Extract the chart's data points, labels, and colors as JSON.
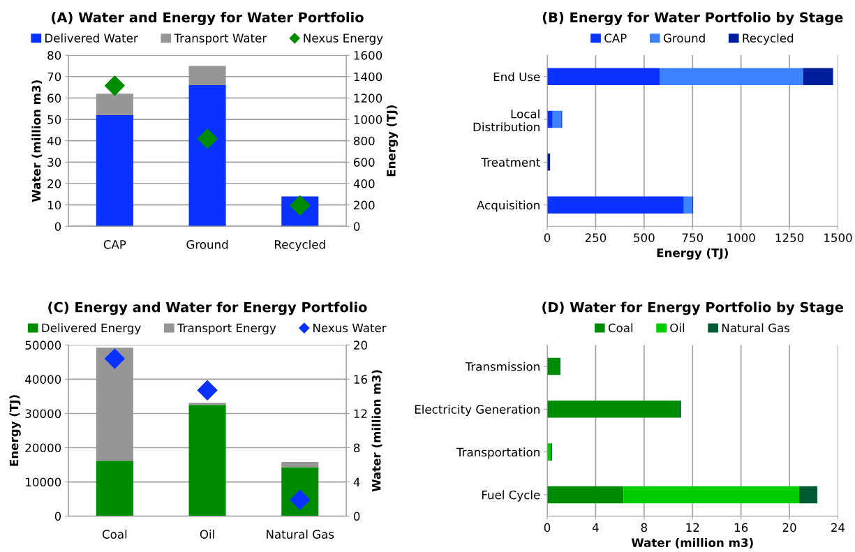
{
  "chart_data": [
    {
      "type": "bar",
      "title": "(A) Water and Energy for Water Portfolio",
      "ylabel": "Water (million m3)",
      "y2label": "Energy (TJ)",
      "categories": [
        "CAP",
        "Ground",
        "Recycled"
      ],
      "stacked": true,
      "grid": "y",
      "legend": "top",
      "ylim": [
        0,
        80
      ],
      "yticks": [
        0,
        10,
        20,
        30,
        40,
        50,
        60,
        70,
        80
      ],
      "y2lim": [
        0,
        1600
      ],
      "y2ticks": [
        0,
        200,
        400,
        600,
        800,
        1000,
        1200,
        1400,
        1600
      ],
      "series": [
        {
          "name": "Delivered Water",
          "color": "#0a32ff",
          "values": [
            52,
            66,
            14
          ]
        },
        {
          "name": "Transport Water",
          "color": "#969696",
          "values": [
            10,
            9,
            0
          ]
        },
        {
          "name": "Nexus Energy",
          "type": "scatter",
          "axis": "y2",
          "marker": "diamond",
          "color": "#008c00",
          "values": [
            1315,
            820,
            195
          ]
        }
      ]
    },
    {
      "type": "bar",
      "title": "(B) Energy for Water Portfolio by Stage",
      "xlabel": "Energy (TJ)",
      "orientation": "horizontal",
      "stacked": true,
      "grid": "x",
      "legend": "top",
      "categories": [
        "End Use",
        "Local\nDistribution",
        "Treatment",
        "Acquisition"
      ],
      "xlim": [
        0,
        1500
      ],
      "xticks": [
        0,
        250,
        500,
        750,
        1000,
        1250,
        1500
      ],
      "series": [
        {
          "name": "CAP",
          "color": "#0a32ff",
          "values": [
            580,
            28,
            0,
            705
          ]
        },
        {
          "name": "Ground",
          "color": "#3c82ff",
          "values": [
            740,
            45,
            0,
            45
          ]
        },
        {
          "name": "Recycled",
          "color": "#001e9b",
          "values": [
            155,
            4,
            15,
            3
          ]
        }
      ]
    },
    {
      "type": "bar",
      "title": "(C) Energy and Water for Energy Portfolio",
      "ylabel": "Energy (TJ)",
      "y2label": "Water (million m3)",
      "categories": [
        "Coal",
        "Oil",
        "Natural Gas"
      ],
      "stacked": true,
      "grid": "y",
      "legend": "top",
      "ylim": [
        0,
        50000
      ],
      "yticks": [
        0,
        10000,
        20000,
        30000,
        40000,
        50000
      ],
      "y2lim": [
        0,
        20
      ],
      "y2ticks": [
        0,
        4,
        8,
        12,
        16,
        20
      ],
      "series": [
        {
          "name": "Delivered Energy",
          "color": "#008c00",
          "values": [
            16200,
            32500,
            14300
          ]
        },
        {
          "name": "Transport Energy",
          "color": "#969696",
          "values": [
            33000,
            600,
            1500
          ]
        },
        {
          "name": "Nexus Water",
          "type": "scatter",
          "axis": "y2",
          "marker": "diamond",
          "color": "#0a32ff",
          "values": [
            18.4,
            14.7,
            1.9
          ]
        }
      ]
    },
    {
      "type": "bar",
      "title": "(D) Water for Energy Portfolio by Stage",
      "xlabel": "Water (million m3)",
      "orientation": "horizontal",
      "stacked": true,
      "grid": "x",
      "legend": "top",
      "categories": [
        "Transmission",
        "Electricity Generation",
        "Transportation",
        "Fuel Cycle"
      ],
      "xlim": [
        0,
        24
      ],
      "xticks": [
        0,
        4,
        8,
        12,
        16,
        20,
        24
      ],
      "series": [
        {
          "name": "Coal",
          "color": "#008c00",
          "values": [
            1.05,
            10.95,
            0,
            6.3
          ]
        },
        {
          "name": "Oil",
          "color": "#00cd00",
          "values": [
            0,
            0,
            0.3,
            14.5
          ]
        },
        {
          "name": "Natural Gas",
          "color": "#005a32",
          "values": [
            0.05,
            0.1,
            0.1,
            1.5
          ]
        }
      ]
    }
  ]
}
